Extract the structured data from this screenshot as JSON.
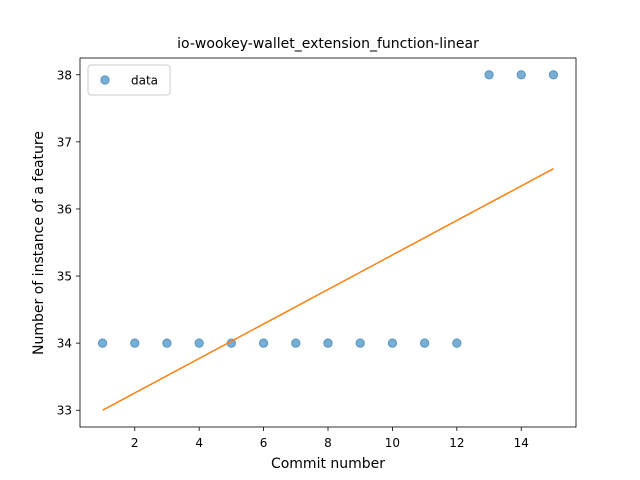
{
  "chart_data": {
    "type": "scatter",
    "title": "io-wookey-wallet_extension_function-linear",
    "xlabel": "Commit number",
    "ylabel": "Number of instance of a feature",
    "xlim": [
      0.3,
      15.7
    ],
    "ylim": [
      32.75,
      38.25
    ],
    "xticks": [
      2,
      4,
      6,
      8,
      10,
      12,
      14
    ],
    "yticks": [
      33,
      34,
      35,
      36,
      37,
      38
    ],
    "grid": false,
    "legend_position": "upper-left",
    "series": [
      {
        "name": "data",
        "kind": "scatter",
        "color": "#1f77b4",
        "x": [
          1,
          2,
          3,
          4,
          5,
          6,
          7,
          8,
          9,
          10,
          11,
          12,
          13,
          14,
          15
        ],
        "y": [
          34,
          34,
          34,
          34,
          34,
          34,
          34,
          34,
          34,
          34,
          34,
          34,
          38,
          38,
          38
        ]
      },
      {
        "kind": "line",
        "color": "#ff7f0e",
        "x": [
          1,
          15
        ],
        "y": [
          33.0,
          36.6
        ]
      }
    ]
  }
}
